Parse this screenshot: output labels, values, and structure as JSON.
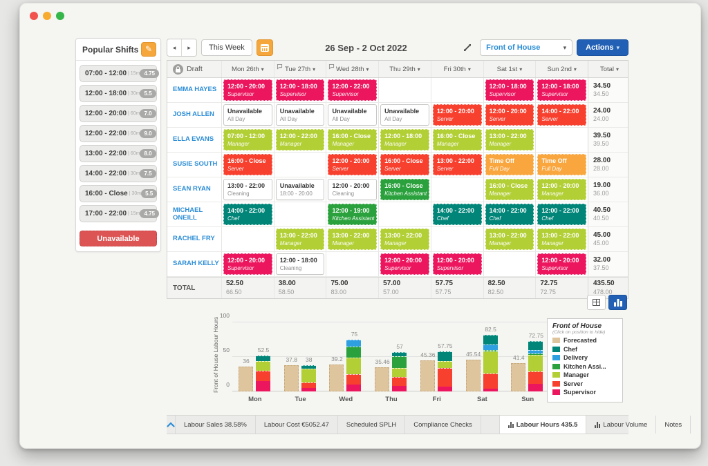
{
  "sidebar": {
    "title": "Popular Shifts",
    "unavailable_label": "Unavailable",
    "shifts": [
      {
        "time": "07:00 - 12:00",
        "break": "| 15m",
        "hours": "4.75"
      },
      {
        "time": "12:00 - 18:00",
        "break": "| 30m",
        "hours": "5.5"
      },
      {
        "time": "12:00 - 20:00",
        "break": "| 60m",
        "hours": "7.0"
      },
      {
        "time": "12:00 - 22:00",
        "break": "| 60m",
        "hours": "9.0"
      },
      {
        "time": "13:00 - 22:00",
        "break": "| 60m",
        "hours": "8.0"
      },
      {
        "time": "14:00 - 22:00",
        "break": "| 30m",
        "hours": "7.5"
      },
      {
        "time": "16:00 - Close",
        "break": "| 30m",
        "hours": "5.5"
      },
      {
        "time": "17:00 - 22:00",
        "break": "| 15m",
        "hours": "4.75"
      }
    ]
  },
  "toolbar": {
    "this_week": "This Week",
    "date_range": "26 Sep - 2 Oct 2022",
    "department": "Front of House",
    "actions": "Actions"
  },
  "colors": {
    "supervisor": "#EC165F",
    "server": "#F8402F",
    "manager": "#B2CF35",
    "kitchen": "#2AA13C",
    "chef": "#008578",
    "timeoff": "#F9A63E",
    "delivery": "#2E9FE0",
    "forecast": "#DEC59D",
    "accent_blue": "#2160B4",
    "link_blue": "#2B8DD6"
  },
  "schedule": {
    "draft_label": "Draft",
    "total_header": "Total",
    "days": [
      {
        "label": "Mon 26th",
        "bubble": false
      },
      {
        "label": "Tue 27th",
        "bubble": true
      },
      {
        "label": "Wed 28th",
        "bubble": true
      },
      {
        "label": "Thu 29th",
        "bubble": false
      },
      {
        "label": "Fri 30th",
        "bubble": false
      },
      {
        "label": "Sat 1st",
        "bubble": false
      },
      {
        "label": "Sun 2nd",
        "bubble": false
      }
    ],
    "rows": [
      {
        "name": "EMMA HAYES",
        "total": "34.50",
        "total2": "34.50",
        "cells": [
          {
            "time": "12:00 - 20:00",
            "role": "Supervisor",
            "type": "supervisor"
          },
          {
            "time": "12:00 - 18:00",
            "role": "Supervisor",
            "type": "supervisor"
          },
          {
            "time": "12:00 - 22:00",
            "role": "Supervisor",
            "type": "supervisor"
          },
          null,
          null,
          {
            "time": "12:00 - 18:00",
            "role": "Supervisor",
            "type": "supervisor"
          },
          {
            "time": "12:00 - 18:00",
            "role": "Supervisor",
            "type": "supervisor"
          }
        ]
      },
      {
        "name": "JOSH ALLEN",
        "total": "24.00",
        "total2": "24.00",
        "cells": [
          {
            "time": "Unavailable",
            "role": "All Day",
            "type": "plain"
          },
          {
            "time": "Unavailable",
            "role": "All Day",
            "type": "plain"
          },
          {
            "time": "Unavailable",
            "role": "All Day",
            "type": "plain"
          },
          {
            "time": "Unavailable",
            "role": "All Day",
            "type": "plain"
          },
          {
            "time": "12:00 - 20:00",
            "role": "Server",
            "type": "server"
          },
          {
            "time": "12:00 - 20:00",
            "role": "Server",
            "type": "server"
          },
          {
            "time": "14:00 - 22:00",
            "role": "Server",
            "type": "server"
          }
        ]
      },
      {
        "name": "ELLA EVANS",
        "total": "39.50",
        "total2": "39.50",
        "cells": [
          {
            "time": "07:00 - 12:00",
            "role": "Manager",
            "type": "manager"
          },
          {
            "time": "12:00 - 22:00",
            "role": "Manager",
            "type": "manager"
          },
          {
            "time": "16:00 - Close",
            "role": "Manager",
            "type": "manager"
          },
          {
            "time": "12:00 - 18:00",
            "role": "Manager",
            "type": "manager"
          },
          {
            "time": "16:00 - Close",
            "role": "Manager",
            "type": "manager"
          },
          {
            "time": "13:00 - 22:00",
            "role": "Manager",
            "type": "manager"
          },
          null
        ]
      },
      {
        "name": "SUSIE SOUTH",
        "total": "28.00",
        "total2": "28.00",
        "cells": [
          {
            "time": "16:00 - Close",
            "role": "Server",
            "type": "server"
          },
          null,
          {
            "time": "12:00 - 20:00",
            "role": "Server",
            "type": "server"
          },
          {
            "time": "16:00 - Close",
            "role": "Server",
            "type": "server"
          },
          {
            "time": "13:00 - 22:00",
            "role": "Server",
            "type": "server"
          },
          {
            "time": "Time Off",
            "role": "Full Day",
            "type": "timeoff"
          },
          {
            "time": "Time Off",
            "role": "Full Day",
            "type": "timeoff"
          }
        ]
      },
      {
        "name": "SEAN RYAN",
        "total": "19.00",
        "total2": "36.00",
        "cells": [
          {
            "time": "13:00 - 22:00",
            "role": "Cleaning",
            "type": "plain"
          },
          {
            "time": "Unavailable",
            "role": "18:00 - 20:00",
            "type": "plain"
          },
          {
            "time": "12:00 - 20:00",
            "role": "Cleaning",
            "type": "plain"
          },
          {
            "time": "16:00 - Close",
            "role": "Kitchen Assistant",
            "type": "kitchen"
          },
          null,
          {
            "time": "16:00 - Close",
            "role": "Manager",
            "type": "manager"
          },
          {
            "time": "12:00 - 20:00",
            "role": "Manager",
            "type": "manager"
          }
        ]
      },
      {
        "name": "MICHAEL ONEILL",
        "total": "40.50",
        "total2": "40.50",
        "cells": [
          {
            "time": "14:00 - 22:00",
            "role": "Chef",
            "type": "chef"
          },
          null,
          {
            "time": "12:00 - 19:00",
            "role": "Kitchen Assistant",
            "type": "kitchen"
          },
          null,
          {
            "time": "14:00 - 22:00",
            "role": "Chef",
            "type": "chef"
          },
          {
            "time": "14:00 - 22:00",
            "role": "Chef",
            "type": "chef"
          },
          {
            "time": "12:00 - 22:00",
            "role": "Chef",
            "type": "chef"
          }
        ]
      },
      {
        "name": "RACHEL FRY",
        "total": "45.00",
        "total2": "45.00",
        "cells": [
          null,
          {
            "time": "13:00 - 22:00",
            "role": "Manager",
            "type": "manager"
          },
          {
            "time": "13:00 - 22:00",
            "role": "Manager",
            "type": "manager"
          },
          {
            "time": "13:00 - 22:00",
            "role": "Manager",
            "type": "manager"
          },
          null,
          {
            "time": "13:00 - 22:00",
            "role": "Manager",
            "type": "manager"
          },
          {
            "time": "13:00 - 22:00",
            "role": "Manager",
            "type": "manager"
          }
        ]
      },
      {
        "name": "SARAH KELLY",
        "total": "32.00",
        "total2": "37.50",
        "cells": [
          {
            "time": "12:00 - 20:00",
            "role": "Supervisor",
            "type": "supervisor"
          },
          {
            "time": "12:00 - 18:00",
            "role": "Cleaning",
            "type": "plain"
          },
          null,
          {
            "time": "12:00 - 20:00",
            "role": "Supervisor",
            "type": "supervisor"
          },
          {
            "time": "12:00 - 20:00",
            "role": "Supervisor",
            "type": "supervisor"
          },
          null,
          {
            "time": "12:00 - 20:00",
            "role": "Supervisor",
            "type": "supervisor"
          }
        ]
      }
    ],
    "totals": {
      "label": "TOTAL",
      "days": [
        [
          "52.50",
          "66.50"
        ],
        [
          "38.00",
          "58.50"
        ],
        [
          "75.00",
          "83.00"
        ],
        [
          "57.00",
          "57.00"
        ],
        [
          "57.75",
          "57.75"
        ],
        [
          "82.50",
          "82.50"
        ],
        [
          "72.75",
          "72.75"
        ]
      ],
      "grand": [
        "435.50",
        "478.00"
      ]
    }
  },
  "chart_data": {
    "type": "grouped-stacked-bar",
    "ylabel": "Front of House Labour Hours",
    "ylim": [
      0,
      100
    ],
    "yticks": [
      0,
      50,
      100
    ],
    "grid": true,
    "categories": [
      "Mon",
      "Tue",
      "Wed",
      "Thu",
      "Fri",
      "Sat",
      "Sun"
    ],
    "forecasted": {
      "name": "Forecasted",
      "color": "#DEC59D",
      "values": [
        36,
        37.8,
        39.2,
        35.46,
        45.36,
        45.54,
        41.4
      ]
    },
    "scheduled_totals": [
      52.5,
      38,
      75,
      57,
      57.75,
      82.5,
      72.75
    ],
    "series": [
      {
        "name": "Supervisor",
        "color": "#EC165F",
        "values": [
          15,
          5,
          10,
          8,
          7,
          4,
          11
        ]
      },
      {
        "name": "Server",
        "color": "#F8402F",
        "values": [
          15.5,
          8,
          15,
          13,
          27,
          22,
          18
        ]
      },
      {
        "name": "Manager",
        "color": "#B2CF35",
        "values": [
          13.5,
          20,
          24,
          13,
          10,
          32,
          24
        ]
      },
      {
        "name": "Kitchen Assistant",
        "color": "#2AA13C",
        "values": [
          0,
          0,
          16,
          17,
          0,
          2,
          2
        ]
      },
      {
        "name": "Delivery",
        "color": "#2E9FE0",
        "values": [
          0,
          0,
          10,
          0,
          0,
          8,
          5
        ]
      },
      {
        "name": "Chef",
        "color": "#008578",
        "values": [
          8.5,
          5,
          0,
          6,
          13.75,
          14.5,
          12.75
        ]
      }
    ],
    "legend_title": "Front of House",
    "legend_subtitle": "(Click on position to hide)",
    "legend_position": "right",
    "legend_entries": [
      {
        "name": "Forecasted",
        "color": "#DEC59D"
      },
      {
        "name": "Chef",
        "color": "#008578"
      },
      {
        "name": "Delivery",
        "color": "#2E9FE0"
      },
      {
        "name": "Kitchen Assi...",
        "color": "#2AA13C"
      },
      {
        "name": "Manager",
        "color": "#B2CF35"
      },
      {
        "name": "Server",
        "color": "#F8402F"
      },
      {
        "name": "Supervisor",
        "color": "#EC165F"
      }
    ]
  },
  "tabs": {
    "items": [
      {
        "label": "Labour Sales 38.58%",
        "icon": false,
        "active": false
      },
      {
        "label": "Labour Cost €5052.47",
        "icon": false,
        "active": false
      },
      {
        "label": "Scheduled SPLH",
        "icon": false,
        "active": false
      },
      {
        "label": "Compliance Checks",
        "icon": false,
        "active": false
      },
      {
        "label": "Labour Hours 435.5",
        "icon": true,
        "active": true
      },
      {
        "label": "Labour Volume",
        "icon": true,
        "active": false
      },
      {
        "label": "Notes",
        "icon": false,
        "active": false
      }
    ]
  }
}
